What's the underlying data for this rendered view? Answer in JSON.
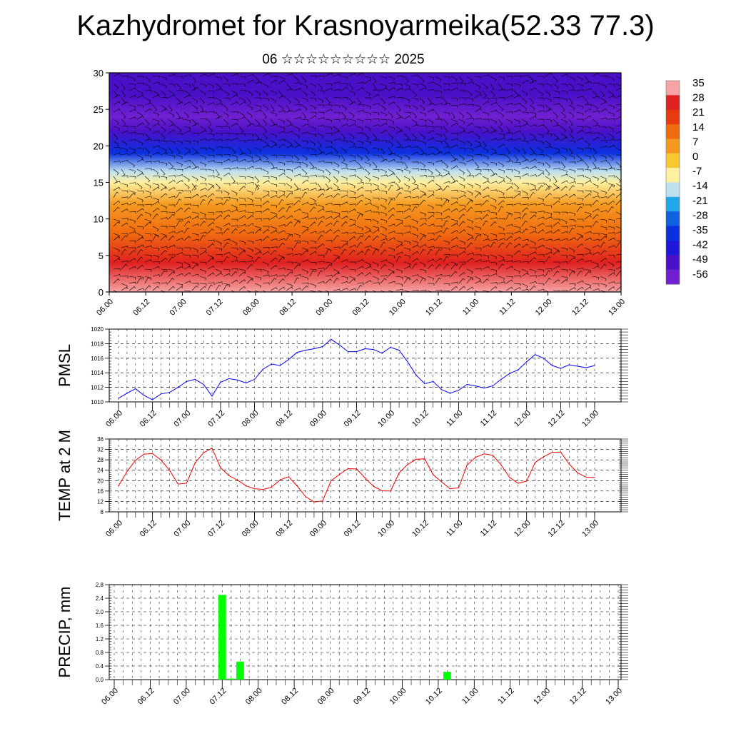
{
  "header": {
    "title": "Kazhydromet for Krasnoyarmeika(52.33 77.3)",
    "subtitle": "06 ☆☆☆☆☆☆☆☆☆ 2025"
  },
  "colors": {
    "pmsl_line": "#0000ff",
    "temp_line": "#ff0000",
    "precip_bar": "#00ff00",
    "grid": "#000000"
  },
  "chart_data": [
    {
      "id": "cross_section",
      "type": "heatmap",
      "title": "",
      "ylabel": "",
      "ylim": [
        0,
        30
      ],
      "yticks": [
        "0",
        "5",
        "10",
        "15",
        "20",
        "25",
        "30"
      ],
      "xticks": [
        "06.00",
        "06.12",
        "07.00",
        "07.12",
        "08.00",
        "08.12",
        "09.00",
        "09.12",
        "10.00",
        "10.12",
        "11.00",
        "11.12",
        "12.00",
        "12.12",
        "13.00"
      ],
      "colorbar": {
        "labels": [
          "35",
          "28",
          "21",
          "14",
          "7",
          "0",
          "-7",
          "-14",
          "-21",
          "-28",
          "-35",
          "-42",
          "-49",
          "-56"
        ],
        "colors": [
          "#f5a3a3",
          "#e02020",
          "#e83a10",
          "#f06a10",
          "#f59a20",
          "#f8c830",
          "#fdf0a0",
          "#bfe0f0",
          "#20a8e8",
          "#1060e0",
          "#0a30e0",
          "#2018d8",
          "#4a10c8",
          "#7020d0"
        ]
      },
      "profile": [
        {
          "h": 0,
          "t": 32
        },
        {
          "h": 4,
          "t": 26
        },
        {
          "h": 8,
          "t": 16
        },
        {
          "h": 12,
          "t": 6
        },
        {
          "h": 15,
          "t": -6
        },
        {
          "h": 16.5,
          "t": -16
        },
        {
          "h": 19,
          "t": -32
        },
        {
          "h": 22,
          "t": -46
        },
        {
          "h": 24,
          "t": -54
        },
        {
          "h": 27,
          "t": -50
        },
        {
          "h": 30,
          "t": -47
        }
      ]
    },
    {
      "id": "pmsl",
      "type": "line",
      "ylabel": "PMSL",
      "ylim": [
        1010,
        1020
      ],
      "yticks": [
        "1010",
        "1012",
        "1014",
        "1016",
        "1018",
        "1020"
      ],
      "xticks": [
        "06.00",
        "06.12",
        "07.00",
        "07.12",
        "08.00",
        "08.12",
        "09.00",
        "09.12",
        "10.00",
        "10.12",
        "11.00",
        "11.12",
        "12.00",
        "12.12",
        "13.00"
      ],
      "x_hours": [
        0,
        3,
        6,
        9,
        12,
        15,
        18,
        21,
        24,
        27,
        30,
        33,
        36,
        39,
        42,
        45,
        48,
        51,
        54,
        57,
        60,
        63,
        66,
        69,
        72,
        75,
        78,
        81,
        84,
        87,
        90,
        93,
        96,
        99,
        102,
        105,
        108,
        111,
        114,
        117,
        120,
        123,
        126,
        129,
        132,
        135,
        138,
        141,
        144,
        147,
        150,
        153,
        156,
        159,
        162,
        165,
        168
      ],
      "series": [
        {
          "name": "",
          "values": [
            1010.5,
            1011.2,
            1011.8,
            1010.9,
            1010.3,
            1011.1,
            1011.3,
            1012.0,
            1012.8,
            1013.1,
            1012.4,
            1010.8,
            1012.7,
            1013.2,
            1013.0,
            1012.6,
            1013.1,
            1014.5,
            1015.2,
            1015.0,
            1015.8,
            1016.8,
            1017.1,
            1017.3,
            1017.6,
            1018.6,
            1017.8,
            1016.9,
            1016.9,
            1017.3,
            1017.2,
            1016.7,
            1017.5,
            1017.1,
            1015.5,
            1013.7,
            1012.5,
            1012.8,
            1011.7,
            1011.2,
            1011.6,
            1012.4,
            1012.2,
            1011.9,
            1012.2,
            1013.1,
            1013.9,
            1014.4,
            1015.5,
            1016.5,
            1016.0,
            1015.0,
            1014.6,
            1015.1,
            1014.9,
            1014.7,
            1015.0
          ]
        }
      ]
    },
    {
      "id": "temp2m",
      "type": "line",
      "ylabel": "TEMP at 2 M",
      "ylim": [
        8,
        36
      ],
      "yticks": [
        "8",
        "12",
        "16",
        "20",
        "24",
        "28",
        "32",
        "36"
      ],
      "xticks": [
        "06.00",
        "06.12",
        "07.00",
        "07.12",
        "08.00",
        "08.12",
        "09.00",
        "09.12",
        "10.00",
        "10.12",
        "11.00",
        "11.12",
        "12.00",
        "12.12",
        "13.00"
      ],
      "x_hours": [
        0,
        3,
        6,
        9,
        12,
        15,
        18,
        21,
        24,
        27,
        30,
        33,
        36,
        39,
        42,
        45,
        48,
        51,
        54,
        57,
        60,
        63,
        66,
        69,
        72,
        75,
        78,
        81,
        84,
        87,
        90,
        93,
        96,
        99,
        102,
        105,
        108,
        111,
        114,
        117,
        120,
        123,
        126,
        129,
        132,
        135,
        138,
        141,
        144,
        147,
        150,
        153,
        156,
        159,
        162,
        165,
        168
      ],
      "series": [
        {
          "name": "",
          "values": [
            18.0,
            23.5,
            27.8,
            30.2,
            30.4,
            27.9,
            24.0,
            18.7,
            19.0,
            26.8,
            30.7,
            32.5,
            25.0,
            21.9,
            20.2,
            18.0,
            16.9,
            16.6,
            17.5,
            20.3,
            21.5,
            18.0,
            13.9,
            11.8,
            12.2,
            20.0,
            22.4,
            24.6,
            24.5,
            21.0,
            17.8,
            16.1,
            16.0,
            23.0,
            26.2,
            28.2,
            28.4,
            22.3,
            19.5,
            16.9,
            17.2,
            26.0,
            29.0,
            30.3,
            29.8,
            26.0,
            21.2,
            19.0,
            19.8,
            27.0,
            29.2,
            30.9,
            31.0,
            26.4,
            23.0,
            21.3,
            21.2
          ]
        }
      ]
    },
    {
      "id": "precip",
      "type": "bar",
      "ylabel": "PRECIP, mm",
      "ylim": [
        0,
        2.8
      ],
      "yticks": [
        "0.0",
        "0.4",
        "0.8",
        "1.2",
        "1.6",
        "2.0",
        "2.4",
        "2.8"
      ],
      "xticks": [
        "06.00",
        "06.12",
        "07.00",
        "07.12",
        "08.00",
        "08.12",
        "09.00",
        "09.12",
        "10.00",
        "10.12",
        "11.00",
        "11.12",
        "12.00",
        "12.12",
        "13.00"
      ],
      "bars": [
        {
          "hour": 36,
          "value": 2.5
        },
        {
          "hour": 39,
          "value": 0.03
        },
        {
          "hour": 42,
          "value": 0.53
        },
        {
          "hour": 111,
          "value": 0.23
        }
      ]
    }
  ]
}
